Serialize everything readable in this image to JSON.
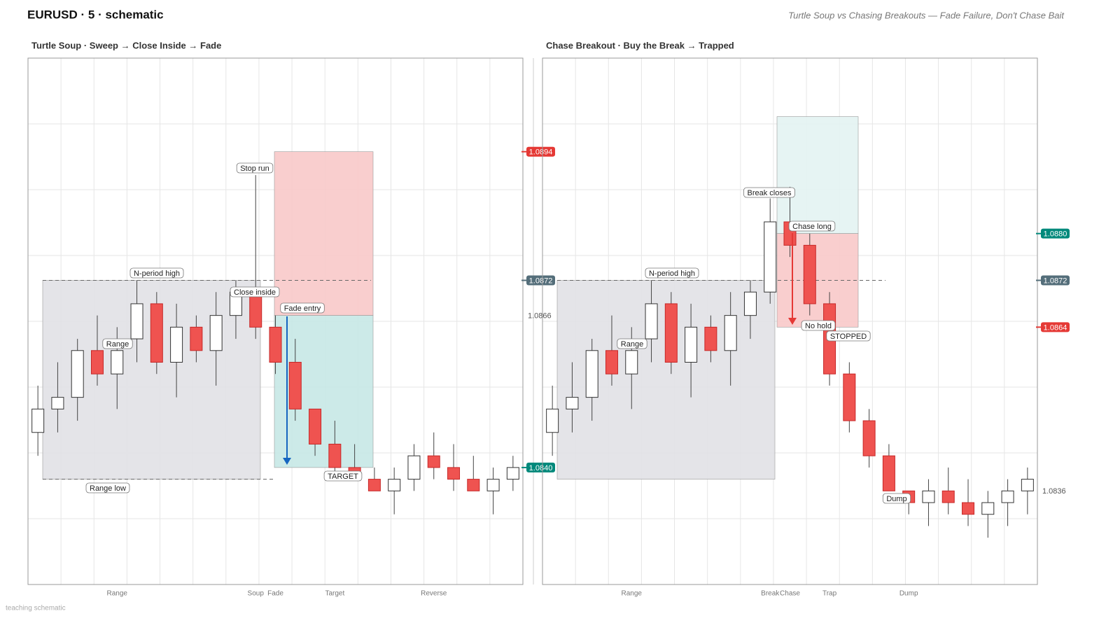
{
  "header": {
    "title": "EURUSD · 5 · schematic",
    "subtitle": "Turtle Soup vs Chasing Breakouts — Fade Failure, Don't Chase Bait"
  },
  "footer": "teaching schematic",
  "chart_data": [
    {
      "type": "candlestick",
      "title": "Turtle Soup  ·  Sweep → Close Inside → Fade",
      "categories": [
        null,
        null,
        null,
        null,
        "Range",
        null,
        null,
        null,
        null,
        null,
        null,
        "Soup",
        "Fade",
        null,
        null,
        "Target",
        null,
        null,
        null,
        null,
        "Reverse",
        null,
        null,
        null,
        null
      ],
      "open": [
        1.0846,
        1.085,
        1.0852,
        1.086,
        1.0856,
        1.0862,
        1.0868,
        1.0858,
        1.0864,
        1.086,
        1.0866,
        1.087,
        1.0864,
        1.0858,
        1.085,
        1.0844,
        1.084,
        1.0838,
        1.0836,
        1.0838,
        1.0842,
        1.084,
        1.0838,
        1.0836,
        1.0838
      ],
      "high": [
        1.0854,
        1.0858,
        1.0862,
        1.0866,
        1.0864,
        1.0872,
        1.087,
        1.0868,
        1.0866,
        1.087,
        1.0872,
        1.089,
        1.0866,
        1.0862,
        1.085,
        1.0848,
        1.0844,
        1.084,
        1.084,
        1.0844,
        1.0846,
        1.0844,
        1.0842,
        1.084,
        1.0842
      ],
      "low": [
        1.0842,
        1.0846,
        1.0848,
        1.0854,
        1.085,
        1.0858,
        1.0856,
        1.0852,
        1.0858,
        1.0854,
        1.0862,
        1.0862,
        1.0856,
        1.0848,
        1.0842,
        1.0838,
        1.0838,
        1.0836,
        1.0832,
        1.0836,
        1.0838,
        1.0836,
        1.0836,
        1.0832,
        1.0836
      ],
      "close": [
        1.085,
        1.0852,
        1.086,
        1.0856,
        1.086,
        1.0868,
        1.0858,
        1.0864,
        1.086,
        1.0866,
        1.087,
        1.0864,
        1.0858,
        1.085,
        1.0844,
        1.084,
        1.0839,
        1.0836,
        1.0838,
        1.0842,
        1.084,
        1.0838,
        1.0836,
        1.0838,
        1.084
      ],
      "ylim": [
        1.082,
        1.091
      ],
      "up_color": "#ffffff",
      "down_color": "#ef5350",
      "zones": [
        {
          "top": 1.0872,
          "bottom": 1.0838,
          "color": "#e1e1e6"
        },
        {
          "top": 1.0894,
          "bottom": 1.0866,
          "color": "#f8c9c9"
        },
        {
          "top": 1.0866,
          "bottom": 1.084,
          "color": "#c6e8e5"
        }
      ],
      "levels": [
        {
          "value": 1.0872
        },
        {
          "value": 1.0838
        }
      ],
      "price_tags": [
        {
          "value": 1.0894,
          "color": "#e53935"
        },
        {
          "value": 1.0872,
          "color": "#546e7a"
        },
        {
          "value": 1.0866
        },
        {
          "value": 1.084,
          "label": "1.0840",
          "color": "#00897b"
        }
      ],
      "annotations": [
        {
          "text": "N-period high"
        },
        {
          "text": "Range"
        },
        {
          "text": "Range low"
        },
        {
          "text": "Stop run"
        },
        {
          "text": "Close inside"
        },
        {
          "text": "Fade entry"
        },
        {
          "text": "TARGET"
        }
      ]
    },
    {
      "type": "candlestick",
      "title": "Chase Breakout  ·  Buy the Break → Trapped",
      "categories": [
        null,
        null,
        null,
        null,
        "Range",
        null,
        null,
        null,
        null,
        null,
        null,
        "Break",
        "Chase",
        null,
        "Trap",
        null,
        null,
        null,
        "Dump",
        null,
        null,
        null,
        null,
        null,
        null
      ],
      "open": [
        1.0846,
        1.085,
        1.0852,
        1.086,
        1.0856,
        1.0862,
        1.0868,
        1.0858,
        1.0864,
        1.086,
        1.0866,
        1.087,
        1.0882,
        1.0878,
        1.0868,
        1.0856,
        1.0848,
        1.0842,
        1.0836,
        1.0834,
        1.0836,
        1.0834,
        1.0832,
        1.0834,
        1.0836
      ],
      "high": [
        1.0854,
        1.0858,
        1.0862,
        1.0866,
        1.0864,
        1.0872,
        1.087,
        1.0868,
        1.0866,
        1.087,
        1.0872,
        1.0886,
        1.0888,
        1.088,
        1.087,
        1.0858,
        1.085,
        1.0844,
        1.0836,
        1.0838,
        1.084,
        1.0838,
        1.0836,
        1.0838,
        1.084
      ],
      "low": [
        1.0842,
        1.0846,
        1.0848,
        1.0854,
        1.085,
        1.0858,
        1.0856,
        1.0852,
        1.0858,
        1.0854,
        1.0862,
        1.0868,
        1.0876,
        1.0866,
        1.0854,
        1.0846,
        1.084,
        1.0836,
        1.0832,
        1.083,
        1.0832,
        1.083,
        1.0828,
        1.083,
        1.0832
      ],
      "close": [
        1.085,
        1.0852,
        1.086,
        1.0856,
        1.086,
        1.0868,
        1.0858,
        1.0864,
        1.086,
        1.0866,
        1.087,
        1.0882,
        1.0878,
        1.0868,
        1.0856,
        1.0848,
        1.0842,
        1.0836,
        1.0834,
        1.0836,
        1.0834,
        1.0832,
        1.0834,
        1.0836,
        1.0838
      ],
      "ylim": [
        1.082,
        1.091
      ],
      "up_color": "#ffffff",
      "down_color": "#ef5350",
      "zones": [
        {
          "top": 1.0872,
          "bottom": 1.0838,
          "color": "#e1e1e6"
        },
        {
          "top": 1.09,
          "bottom": 1.088,
          "color": "#e3f3f2"
        },
        {
          "top": 1.088,
          "bottom": 1.0864,
          "color": "#f8c9c9"
        }
      ],
      "levels": [
        {
          "value": 1.0872
        }
      ],
      "price_tags": [
        {
          "value": 1.088,
          "label": "1.0880",
          "color": "#00897b"
        },
        {
          "value": 1.0872,
          "color": "#546e7a"
        },
        {
          "value": 1.0864,
          "color": "#e53935"
        },
        {
          "value": 1.0836
        }
      ],
      "annotations": [
        {
          "text": "N-period high"
        },
        {
          "text": "Range"
        },
        {
          "text": "Break closes"
        },
        {
          "text": "Chase long"
        },
        {
          "text": "No hold"
        },
        {
          "text": "STOPPED"
        },
        {
          "text": "Dump"
        }
      ]
    }
  ]
}
